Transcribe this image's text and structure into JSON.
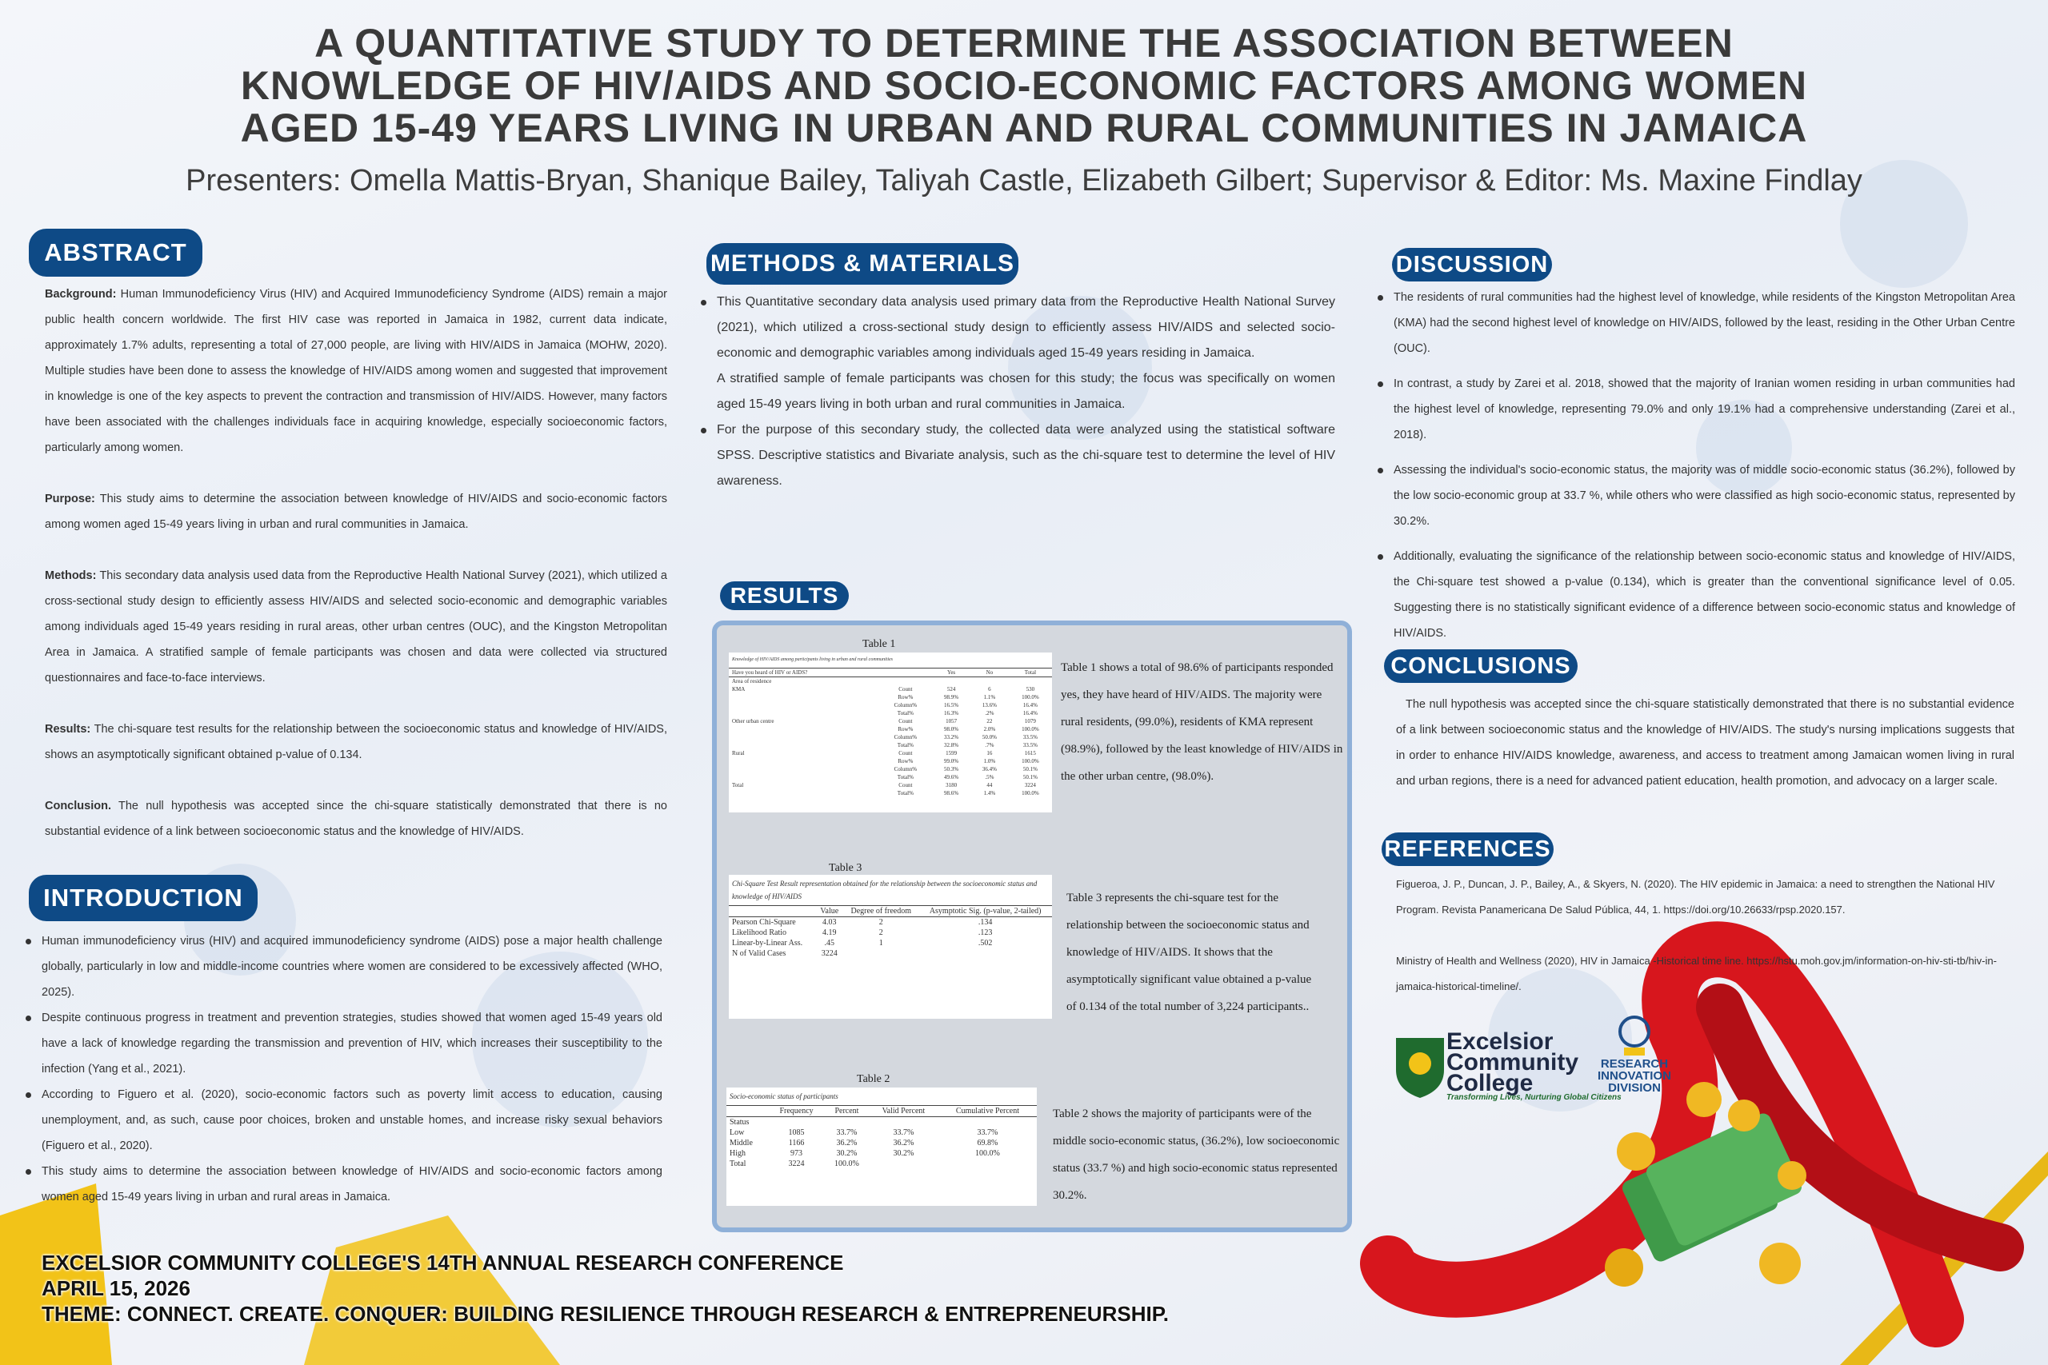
{
  "header": {
    "title": [
      "A QUANTITATIVE STUDY TO DETERMINE THE ASSOCIATION BETWEEN",
      "KNOWLEDGE OF HIV/AIDS AND SOCIO-ECONOMIC FACTORS AMONG WOMEN",
      "AGED 15-49 YEARS LIVING IN URBAN AND RURAL COMMUNITIES IN JAMAICA"
    ],
    "presenters": "Presenters: Omella Mattis-Bryan, Shanique Bailey, Taliyah Castle, Elizabeth Gilbert; Supervisor & Editor: Ms. Maxine Findlay"
  },
  "abstract": {
    "heading": "ABSTRACT",
    "paragraphs": [
      {
        "label": "Background:",
        "text": "Human Immunodeficiency Virus (HIV) and Acquired Immunodeficiency Syndrome (AIDS) remain a major public health concern worldwide. The first HIV case was reported in Jamaica in 1982, current data indicate, approximately 1.7% adults, representing a total of 27,000 people, are living with HIV/AIDS in Jamaica (MOHW, 2020). Multiple studies have been done to assess the knowledge of HIV/AIDS among women and suggested that improvement in knowledge is one of the key aspects to prevent the contraction and transmission of HIV/AIDS. However, many factors have been associated with the challenges individuals face in acquiring knowledge, especially socioeconomic factors, particularly among women."
      },
      {
        "label": "Purpose:",
        "text": "This study aims to determine the association between knowledge of HIV/AIDS and socio-economic factors among women aged 15-49 years living in urban and rural communities in Jamaica."
      },
      {
        "label": "Methods:",
        "text": "This secondary data analysis used data from the Reproductive Health National Survey (2021), which utilized a cross-sectional study design to efficiently assess HIV/AIDS and selected socio-economic and demographic variables among individuals aged 15-49 years residing in rural areas, other urban centres (OUC), and the Kingston Metropolitan Area in Jamaica. A stratified sample of female participants was chosen and data were collected via structured questionnaires and face-to-face interviews."
      },
      {
        "label": "Results:",
        "text": "The chi-square test results for the relationship between the socioeconomic status and knowledge of HIV/AIDS, shows an asymptotically significant obtained p-value of 0.134."
      },
      {
        "label": "Conclusion.",
        "text": "The null hypothesis was accepted since the chi-square statistically demonstrated that there is no substantial evidence of a link between socioeconomic status and the knowledge of HIV/AIDS."
      }
    ]
  },
  "introduction": {
    "heading": "INTRODUCTION",
    "bullets": [
      "Human immunodeficiency virus (HIV) and acquired immunodeficiency syndrome (AIDS) pose a major health challenge globally, particularly in low and middle-income countries where women are considered to be excessively affected (WHO, 2025).",
      "Despite continuous progress in treatment and prevention strategies, studies showed that women aged 15-49 years old have a lack of knowledge regarding the transmission and prevention of HIV, which increases their susceptibility to the infection (Yang et al., 2021).",
      "According to Figuero et al. (2020), socio-economic factors such as poverty limit access to education, causing unemployment, and, as such, cause poor choices, broken and unstable homes, and increase risky sexual behaviors (Figuero et al., 2020).",
      "This study aims to determine the association between knowledge of HIV/AIDS and socio-economic factors among women aged 15-49 years living in urban and rural areas in Jamaica."
    ]
  },
  "methods": {
    "heading": "METHODS & MATERIALS",
    "items": [
      {
        "bullet": true,
        "text": "This Quantitative secondary data analysis used primary data from the Reproductive Health National Survey (2021), which utilized a cross-sectional study design to efficiently assess HIV/AIDS and selected socio-economic and demographic variables among individuals aged 15-49 years residing in Jamaica."
      },
      {
        "bullet": false,
        "text": "A stratified sample of female participants was chosen for this study; the focus was specifically on women aged 15-49 years living in both urban and rural communities in Jamaica."
      },
      {
        "bullet": true,
        "text": "For the purpose of this secondary study, the collected data were analyzed using the statistical software SPSS. Descriptive statistics and Bivariate analysis, such as the chi-square test to determine the level of HIV awareness."
      }
    ]
  },
  "results": {
    "heading": "RESULTS",
    "table1": {
      "label": "Table 1",
      "caption": "Knowledge of HIV/AIDS among participants living in urban and rural communities",
      "header": [
        "Have you heard of HIV or AIDS?",
        null,
        "Yes",
        "No",
        "Total"
      ],
      "rows": [
        [
          "Area of residence",
          null,
          null,
          null,
          null
        ],
        [
          "KMA",
          "Count",
          "524",
          "6",
          "530"
        ],
        [
          null,
          "Row%",
          "98.9%",
          "1.1%",
          "100.0%"
        ],
        [
          null,
          "Column%",
          "16.5%",
          "13.6%",
          "16.4%"
        ],
        [
          null,
          "Total%",
          "16.3%",
          ".2%",
          "16.4%"
        ],
        [
          "Other urban centre",
          "Count",
          "1057",
          "22",
          "1079"
        ],
        [
          null,
          "Row%",
          "98.0%",
          "2.0%",
          "100.0%"
        ],
        [
          null,
          "Column%",
          "33.2%",
          "50.0%",
          "33.5%"
        ],
        [
          null,
          "Total%",
          "32.8%",
          ".7%",
          "33.5%"
        ],
        [
          "Rural",
          "Count",
          "1599",
          "16",
          "1615"
        ],
        [
          null,
          "Row%",
          "99.0%",
          "1.0%",
          "100.0%"
        ],
        [
          null,
          "Column%",
          "50.3%",
          "36.4%",
          "50.1%"
        ],
        [
          null,
          "Total%",
          "49.6%",
          ".5%",
          "50.1%"
        ],
        [
          "Total",
          "Count",
          "3180",
          "44",
          "3224"
        ],
        [
          null,
          "Total%",
          "98.6%",
          "1.4%",
          "100.0%"
        ]
      ]
    },
    "table1_text": "Table 1 shows a total of 98.6% of participants responded yes, they have heard of HIV/AIDS. The majority were rural residents, (99.0%), residents of KMA represent (98.9%), followed by the least knowledge of HIV/AIDS in the other urban centre, (98.0%).",
    "table3": {
      "label": "Table 3",
      "caption": "Chi-Square Test Result representation obtained for the relationship between the socioeconomic status and knowledge of HIV/AIDS",
      "header": [
        null,
        "Value",
        "Degree of freedom",
        "Asymptotic Sig. (p-value, 2-tailed)"
      ],
      "rows": [
        [
          "Pearson Chi-Square",
          "4.03",
          "2",
          ".134"
        ],
        [
          "Likelihood Ratio",
          "4.19",
          "2",
          ".123"
        ],
        [
          "Linear-by-Linear Ass.",
          ".45",
          "1",
          ".502"
        ],
        [
          "N of Valid Cases",
          "3224",
          null,
          null
        ]
      ]
    },
    "table3_text": "Table 3 represents the chi-square test for the relationship between the socioeconomic status and knowledge of HIV/AIDS. It shows that the asymptotically significant value obtained a p-value of 0.134 of the total number of 3,224 participants..",
    "table2": {
      "label": "Table 2",
      "caption": "Socio-economic status of participants",
      "header": [
        null,
        "Frequency",
        "Percent",
        "Valid Percent",
        "Cumulative Percent"
      ],
      "rows": [
        [
          "Status",
          null,
          null,
          null,
          null
        ],
        [
          "Low",
          "1085",
          "33.7%",
          "33.7%",
          "33.7%"
        ],
        [
          "Middle",
          "1166",
          "36.2%",
          "36.2%",
          "69.8%"
        ],
        [
          "High",
          "973",
          "30.2%",
          "30.2%",
          "100.0%"
        ],
        [
          "Total",
          "3224",
          "100.0%",
          null,
          null
        ]
      ]
    },
    "table2_text": "Table 2 shows the majority of participants were of the middle socio-economic status, (36.2%), low socioeconomic status (33.7 %) and high socio-economic status represented 30.2%."
  },
  "discussion": {
    "heading": "DISCUSSION",
    "bullets": [
      "The residents of rural communities had the highest level of knowledge, while residents of the Kingston Metropolitan Area (KMA) had the second highest level of knowledge on HIV/AIDS, followed by the least, residing in the Other Urban Centre (OUC).",
      "In contrast, a study by Zarei et al. 2018, showed that the majority of Iranian women residing in urban communities had the highest level of knowledge, representing 79.0% and only 19.1% had a comprehensive understanding (Zarei et al., 2018).",
      "Assessing the individual's socio-economic status, the majority was of middle socio-economic status (36.2%), followed by the low socio-economic group at 33.7 %, while others who were classified as high socio-economic status, represented by 30.2%.",
      "Additionally, evaluating the significance of the relationship between socio-economic status and knowledge of HIV/AIDS, the Chi-square test showed a p-value (0.134), which is greater than the conventional significance level of 0.05. Suggesting there is no statistically significant evidence of a difference between socio-economic status and knowledge of HIV/AIDS."
    ]
  },
  "conclusions": {
    "heading": "CONCLUSIONS",
    "text": "The null hypothesis was accepted since the chi-square statistically demonstrated that there is no substantial evidence of a link between socioeconomic status and the knowledge of HIV/AIDS. The study's nursing implications suggests that in order to enhance HIV/AIDS knowledge, awareness, and access to treatment among Jamaican women living in rural and urban regions, there is a need for advanced patient education, health promotion, and advocacy on a larger scale."
  },
  "references": {
    "heading": "REFERENCES",
    "items": [
      "Figueroa, J. P., Duncan, J. P., Bailey, A., & Skyers, N. (2020). The HIV epidemic in Jamaica: a need to strengthen the National HIV Program. Revista Panamericana De Salud Pública, 44, 1. https://doi.org/10.26633/rpsp.2020.157.",
      "Ministry of Health and Wellness (2020), HIV in Jamaica -Historical time line. https://hstu.moh.gov.jm/information-on-hiv-sti-tb/hiv-in-jamaica-historical-timeline/."
    ]
  },
  "logos": {
    "college": [
      "Excelsior",
      "Community",
      "College"
    ],
    "tagline": "Transforming Lives, Nurturing Global Citizens",
    "division": [
      "RESEARCH",
      "INNOVATION",
      "DIVISION"
    ]
  },
  "footer": [
    "EXCELSIOR COMMUNITY COLLEGE'S 14TH ANNUAL RESEARCH CONFERENCE",
    "APRIL 15, 2026",
    "THEME: CONNECT. CREATE. CONQUER: BUILDING RESILIENCE THROUGH RESEARCH & ENTREPRENEURSHIP."
  ]
}
